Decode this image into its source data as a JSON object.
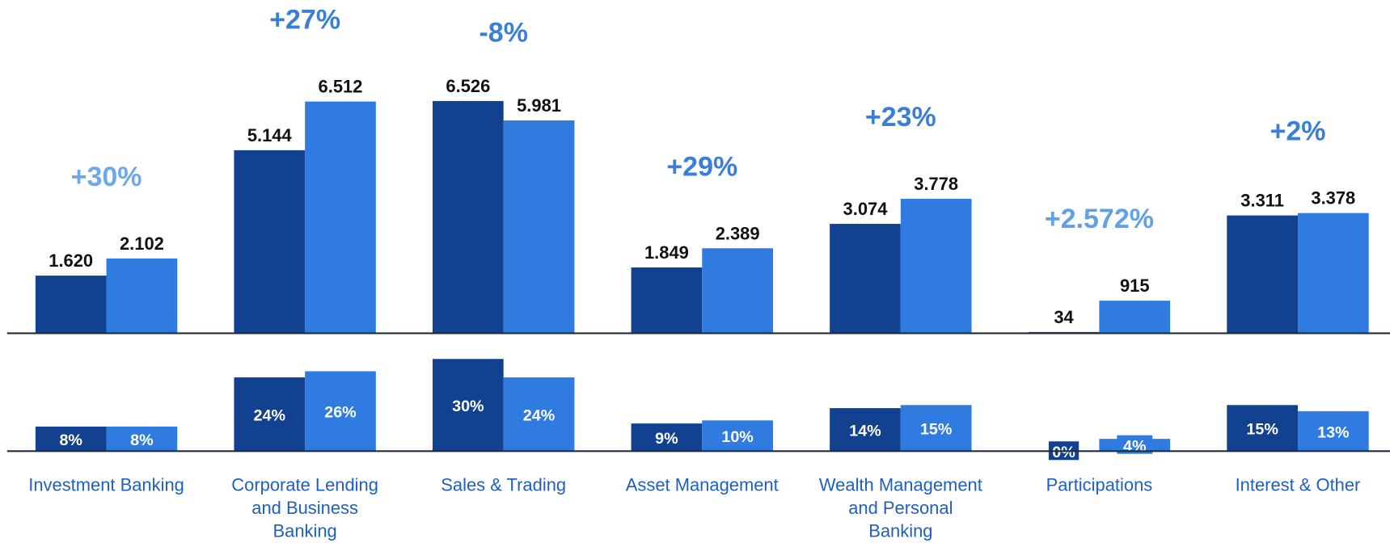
{
  "chart_data": [
    {
      "type": "bar",
      "categories": [
        "Investment Banking",
        "Corporate Lending and Business Banking",
        "Sales & Trading",
        "Asset Management",
        "Wealth Management and Personal Banking",
        "Participations",
        "Interest & Other"
      ],
      "series": [
        {
          "color": "#12418f",
          "values": [
            1620,
            5144,
            6526,
            1849,
            3074,
            34,
            3311
          ],
          "value_labels": [
            "1.620",
            "5.144",
            "6.526",
            "1.849",
            "3.074",
            "34",
            "3.311"
          ]
        },
        {
          "color": "#2f7be0",
          "values": [
            2102,
            6512,
            5981,
            2389,
            3778,
            915,
            3378
          ],
          "value_labels": [
            "2.102",
            "6.512",
            "5.981",
            "2.389",
            "3.778",
            "915",
            "3.378"
          ]
        }
      ],
      "ylim": [
        0,
        8000
      ],
      "annotations": [
        {
          "text": "+30%",
          "color": "#6ea8ec"
        },
        {
          "text": "+27%",
          "color": "#3a7ed8"
        },
        {
          "text": "-8%",
          "color": "#3a7ed8"
        },
        {
          "text": "+29%",
          "color": "#3a7ed8"
        },
        {
          "text": "+23%",
          "color": "#3a7ed8"
        },
        {
          "text": "+2.572%",
          "color": "#62a0e8"
        },
        {
          "text": "+2%",
          "color": "#3a7ed8"
        }
      ]
    },
    {
      "type": "bar",
      "series": [
        {
          "color": "#12418f",
          "values": [
            8,
            24,
            30,
            9,
            14,
            0,
            15
          ],
          "value_labels": [
            "8%",
            "24%",
            "30%",
            "9%",
            "14%",
            "0%",
            "15%"
          ]
        },
        {
          "color": "#2f7be0",
          "values": [
            8,
            26,
            24,
            10,
            15,
            4,
            13
          ],
          "value_labels": [
            "8%",
            "26%",
            "24%",
            "10%",
            "15%",
            "4%",
            "13%"
          ]
        }
      ],
      "ylim": [
        0,
        40
      ]
    }
  ]
}
